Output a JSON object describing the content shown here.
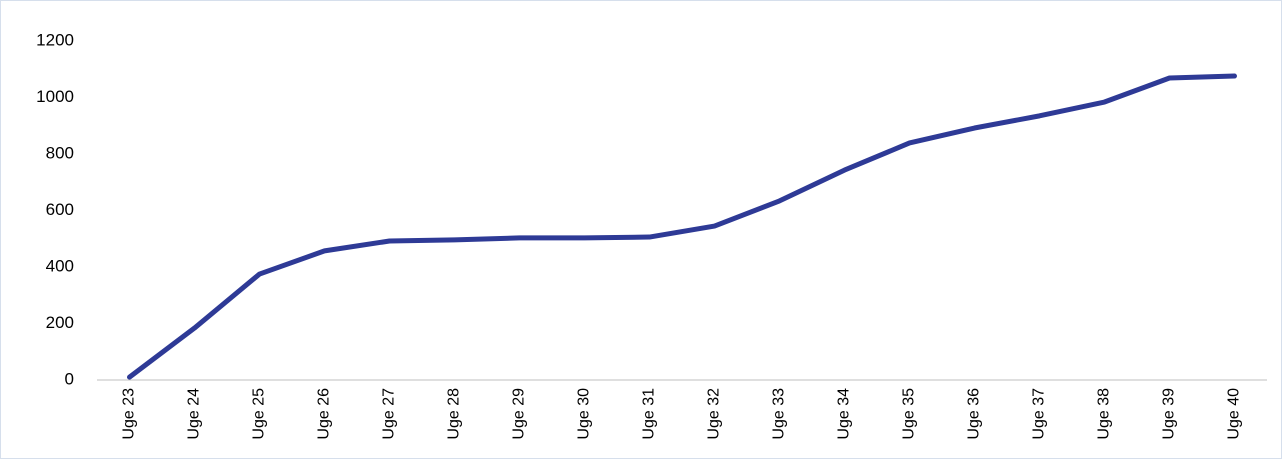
{
  "chart_data": {
    "type": "line",
    "categories": [
      "Uge 23",
      "Uge 24",
      "Uge 25",
      "Uge 26",
      "Uge 27",
      "Uge 28",
      "Uge 29",
      "Uge 30",
      "Uge 31",
      "Uge 32",
      "Uge 33",
      "Uge 34",
      "Uge 35",
      "Uge 36",
      "Uge 37",
      "Uge 38",
      "Uge 39",
      "Uge 40"
    ],
    "values": [
      10,
      184,
      375,
      457,
      492,
      496,
      503,
      503,
      506,
      545,
      634,
      743,
      839,
      892,
      935,
      984,
      1069,
      1076
    ],
    "color": "#2e3a96",
    "ylim": [
      0,
      1200
    ],
    "yticks": [
      0,
      200,
      400,
      600,
      800,
      1000,
      1200
    ],
    "grid": false
  }
}
